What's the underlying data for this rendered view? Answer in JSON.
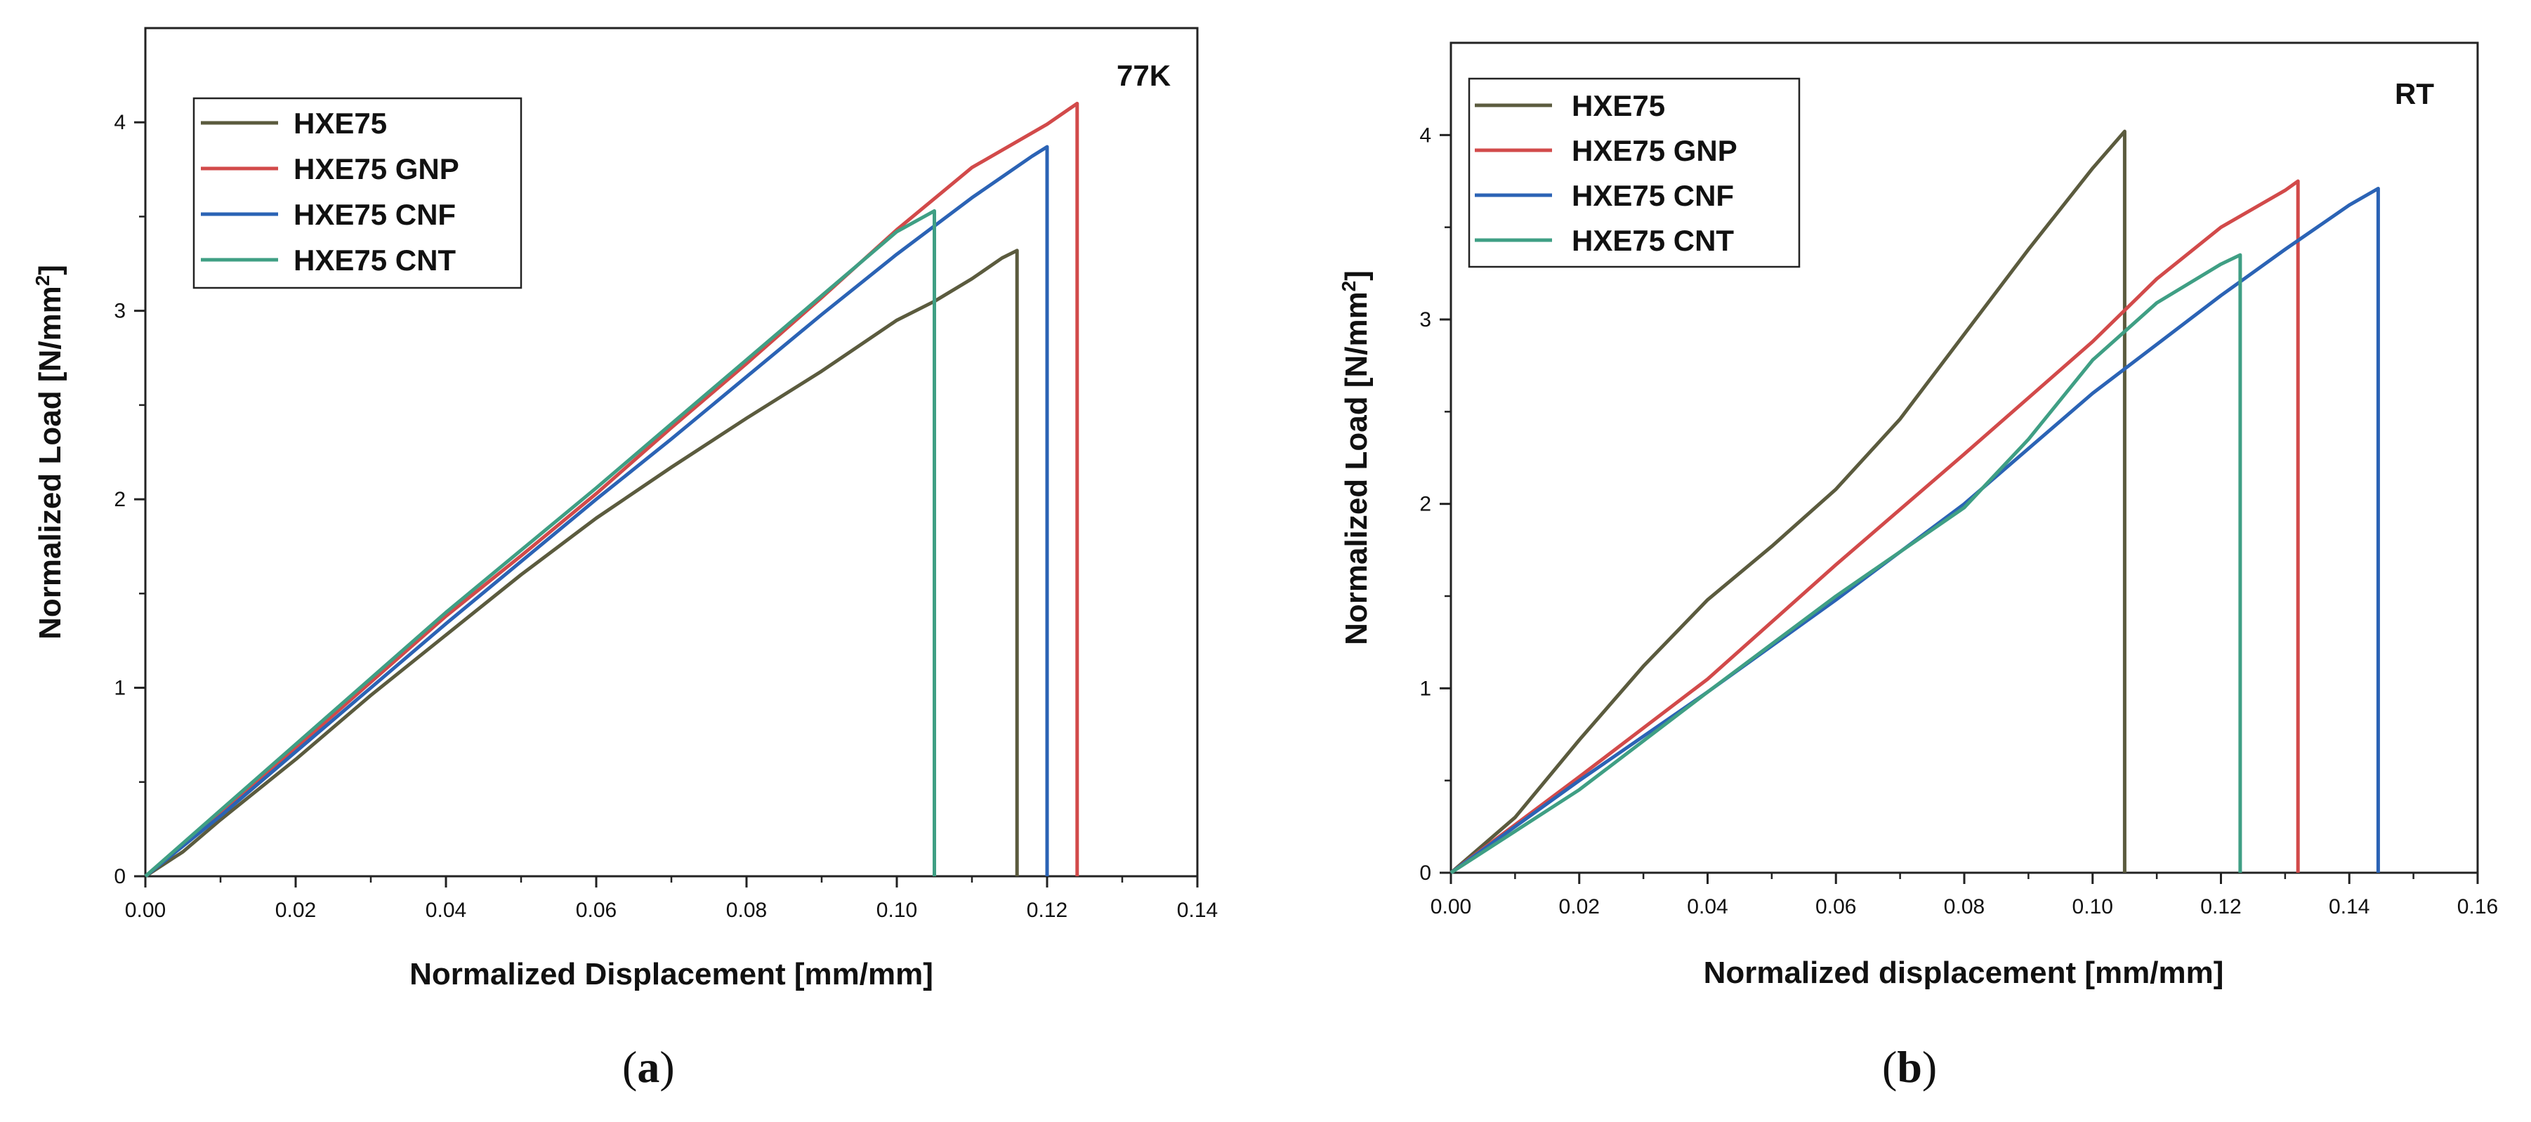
{
  "colors": {
    "HXE75": "#5b5b3e",
    "HXE75 GNP": "#d24a4a",
    "HXE75 CNF": "#2b63b5",
    "HXE75 CNT": "#3f9f84"
  },
  "chart_data": [
    {
      "type": "line",
      "panel": "(a)",
      "panel_letter": "a",
      "corner_label": "77K",
      "xlabel": "Normalized Displacement [mm/mm]",
      "ylabel_base": "Normalized Load [N/mm",
      "ylabel_sup": "2",
      "ylabel_close": "]",
      "xlim": [
        0,
        0.14
      ],
      "ylim": [
        0,
        4.5
      ],
      "xticks": [
        0.0,
        0.02,
        0.04,
        0.06,
        0.08,
        0.1,
        0.12,
        0.14
      ],
      "xtick_labels": [
        "0.00",
        "0.02",
        "0.04",
        "0.06",
        "0.08",
        "0.10",
        "0.12",
        "0.14"
      ],
      "yticks": [
        0,
        1,
        2,
        3,
        4
      ],
      "ytick_labels": [
        "0",
        "1",
        "2",
        "3",
        "4"
      ],
      "legend": [
        "HXE75",
        "HXE75 GNP",
        "HXE75 CNF",
        "HXE75 CNT"
      ],
      "series": [
        {
          "name": "HXE75",
          "x": [
            0,
            0.005,
            0.01,
            0.02,
            0.03,
            0.04,
            0.05,
            0.06,
            0.07,
            0.08,
            0.09,
            0.1,
            0.105,
            0.11,
            0.114,
            0.116,
            0.116
          ],
          "y": [
            0,
            0.13,
            0.3,
            0.62,
            0.96,
            1.28,
            1.6,
            1.9,
            2.17,
            2.43,
            2.68,
            2.95,
            3.05,
            3.17,
            3.28,
            3.32,
            0
          ]
        },
        {
          "name": "HXE75 GNP",
          "x": [
            0,
            0.01,
            0.02,
            0.03,
            0.04,
            0.05,
            0.06,
            0.07,
            0.08,
            0.09,
            0.1,
            0.11,
            0.12,
            0.124,
            0.124
          ],
          "y": [
            0,
            0.34,
            0.68,
            1.03,
            1.38,
            1.7,
            2.03,
            2.38,
            2.72,
            3.07,
            3.43,
            3.76,
            3.99,
            4.1,
            0
          ]
        },
        {
          "name": "HXE75 CNF",
          "x": [
            0,
            0.01,
            0.02,
            0.03,
            0.04,
            0.05,
            0.06,
            0.07,
            0.08,
            0.09,
            0.1,
            0.11,
            0.118,
            0.12,
            0.12
          ],
          "y": [
            0,
            0.32,
            0.66,
            1.0,
            1.34,
            1.67,
            2.0,
            2.32,
            2.65,
            2.98,
            3.3,
            3.6,
            3.82,
            3.87,
            0
          ]
        },
        {
          "name": "HXE75 CNT",
          "x": [
            0,
            0.01,
            0.02,
            0.03,
            0.04,
            0.05,
            0.06,
            0.07,
            0.08,
            0.09,
            0.1,
            0.105,
            0.105
          ],
          "y": [
            0,
            0.35,
            0.7,
            1.05,
            1.4,
            1.73,
            2.06,
            2.4,
            2.74,
            3.08,
            3.42,
            3.53,
            0
          ]
        }
      ]
    },
    {
      "type": "line",
      "panel": "(b)",
      "panel_letter": "b",
      "corner_label": "RT",
      "xlabel": "Normalized displacement [mm/mm]",
      "ylabel_base": "Normalized Load [N/mm",
      "ylabel_sup": "2",
      "ylabel_close": "]",
      "xlim": [
        0,
        0.16
      ],
      "ylim": [
        0,
        4.5
      ],
      "xticks": [
        0.0,
        0.02,
        0.04,
        0.06,
        0.08,
        0.1,
        0.12,
        0.14,
        0.16
      ],
      "xtick_labels": [
        "0.00",
        "0.02",
        "0.04",
        "0.06",
        "0.08",
        "0.10",
        "0.12",
        "0.14",
        "0.16"
      ],
      "yticks": [
        0,
        1,
        2,
        3,
        4
      ],
      "ytick_labels": [
        "0",
        "1",
        "2",
        "3",
        "4"
      ],
      "legend": [
        "HXE75",
        "HXE75 GNP",
        "HXE75 CNF",
        "HXE75 CNT"
      ],
      "series": [
        {
          "name": "HXE75",
          "x": [
            0,
            0.01,
            0.02,
            0.03,
            0.04,
            0.05,
            0.06,
            0.07,
            0.08,
            0.09,
            0.1,
            0.105,
            0.105
          ],
          "y": [
            0,
            0.3,
            0.72,
            1.12,
            1.48,
            1.77,
            2.08,
            2.46,
            2.92,
            3.38,
            3.82,
            4.02,
            0
          ]
        },
        {
          "name": "HXE75 GNP",
          "x": [
            0,
            0.02,
            0.04,
            0.06,
            0.08,
            0.1,
            0.11,
            0.12,
            0.13,
            0.132,
            0.132
          ],
          "y": [
            0,
            0.52,
            1.05,
            1.67,
            2.27,
            2.88,
            3.22,
            3.5,
            3.7,
            3.75,
            0
          ]
        },
        {
          "name": "HXE75 CNF",
          "x": [
            0,
            0.02,
            0.04,
            0.06,
            0.08,
            0.1,
            0.12,
            0.13,
            0.14,
            0.1445,
            0.1445
          ],
          "y": [
            0,
            0.5,
            0.98,
            1.48,
            2.0,
            2.6,
            3.13,
            3.38,
            3.62,
            3.71,
            0
          ]
        },
        {
          "name": "HXE75 CNT",
          "x": [
            0,
            0.02,
            0.04,
            0.06,
            0.08,
            0.09,
            0.1,
            0.11,
            0.12,
            0.123,
            0.123
          ],
          "y": [
            0,
            0.45,
            0.98,
            1.5,
            1.98,
            2.35,
            2.78,
            3.09,
            3.3,
            3.35,
            0
          ]
        }
      ]
    }
  ]
}
